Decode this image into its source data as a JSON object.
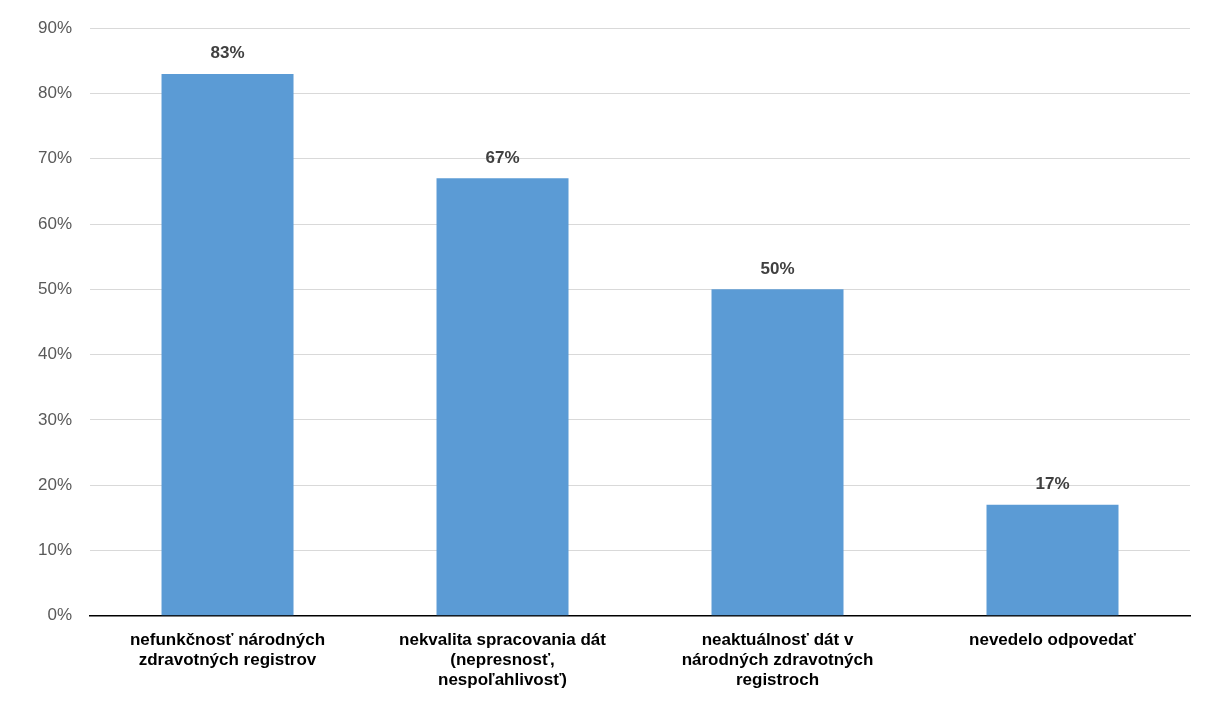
{
  "chart_data": {
    "type": "bar",
    "categories": [
      "nefunkčnosť národných zdravotných registrov",
      "nekvalita spracovania dát (nepresnosť, nespoľahlivosť)",
      "neaktuálnosť dát v národných zdravotných registroch",
      "nevedelo odpovedať"
    ],
    "values": [
      83,
      67,
      50,
      17
    ],
    "color": "#5b9bd5",
    "value_labels": [
      "83%",
      "67%",
      "50%",
      "17%"
    ],
    "ylim": [
      0,
      90
    ],
    "yticks": [
      {
        "value": 0,
        "label": "0%"
      },
      {
        "value": 10,
        "label": "10%"
      },
      {
        "value": 20,
        "label": "20%"
      },
      {
        "value": 30,
        "label": "30%"
      },
      {
        "value": 40,
        "label": "40%"
      },
      {
        "value": 50,
        "label": "50%"
      },
      {
        "value": 60,
        "label": "60%"
      },
      {
        "value": 70,
        "label": "70%"
      },
      {
        "value": 80,
        "label": "80%"
      },
      {
        "value": 90,
        "label": "90%"
      }
    ],
    "grid": "y",
    "legend": false
  }
}
